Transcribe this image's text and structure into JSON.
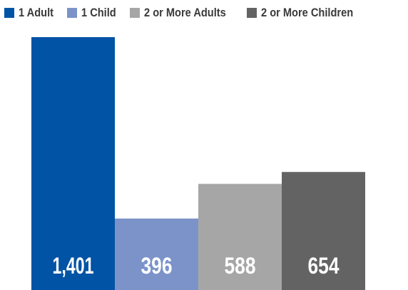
{
  "chart_data": {
    "type": "bar",
    "categories": [
      "1 Adult",
      "1 Child",
      "2 or More Adults",
      "2 or More Children"
    ],
    "values": [
      1401,
      396,
      588,
      654
    ],
    "value_labels": [
      "1,401",
      "396",
      "588",
      "654"
    ],
    "colors": [
      "#0053a5",
      "#7b93c9",
      "#a6a6a6",
      "#636363"
    ],
    "legend": {
      "position": "top",
      "entries": [
        "1 Adult",
        "1 Child",
        "2 or More Adults",
        "2 or More Children"
      ]
    },
    "title": "",
    "xlabel": "",
    "ylabel": "",
    "ylim": [
      0,
      1401
    ],
    "grid": false
  }
}
